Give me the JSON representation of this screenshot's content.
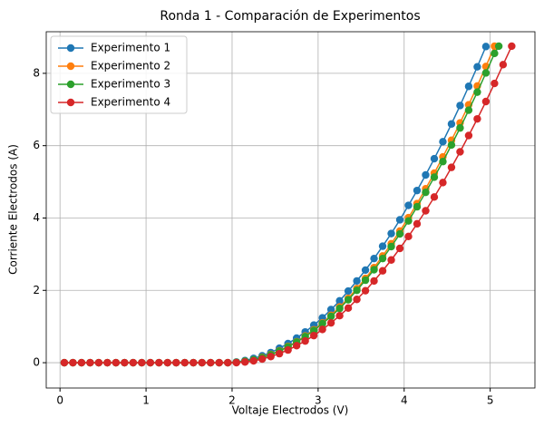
{
  "chart_data": {
    "type": "line",
    "title": "Ronda 1 - Comparación de Experimentos",
    "x_label": "Voltaje Electrodos (V)",
    "y_label": "Corriente Electrodos (A)",
    "xlim": [
      -0.16,
      5.52
    ],
    "ylim": [
      -0.7,
      9.15
    ],
    "xticks": [
      0,
      1,
      2,
      3,
      4,
      5
    ],
    "yticks": [
      0,
      2,
      4,
      6,
      8
    ],
    "grid": true,
    "legend": "upper left",
    "series": [
      {
        "name": "Experimento 1",
        "color": "#1f77b4",
        "x": [
          0.05,
          0.15,
          0.25,
          0.35,
          0.45,
          0.55,
          0.65,
          0.75,
          0.85,
          0.95,
          1.05,
          1.15,
          1.25,
          1.35,
          1.45,
          1.55,
          1.65,
          1.75,
          1.85,
          1.95,
          2.05,
          2.15,
          2.25,
          2.35,
          2.45,
          2.55,
          2.65,
          2.75,
          2.85,
          2.95,
          3.05,
          3.15,
          3.25,
          3.35,
          3.45,
          3.55,
          3.65,
          3.75,
          3.85,
          3.95,
          4.05,
          4.15,
          4.25,
          4.35,
          4.45,
          4.55,
          4.65,
          4.75,
          4.85,
          4.95
        ],
        "values": [
          0,
          0,
          0,
          0,
          0,
          0,
          0,
          0,
          0,
          0,
          0,
          0,
          0,
          0,
          0,
          0,
          0,
          0,
          0,
          0,
          0.02,
          0.06,
          0.12,
          0.19,
          0.28,
          0.4,
          0.53,
          0.68,
          0.85,
          1.04,
          1.24,
          1.47,
          1.71,
          1.98,
          2.26,
          2.56,
          2.88,
          3.22,
          3.57,
          3.95,
          4.35,
          4.76,
          5.19,
          5.64,
          6.11,
          6.6,
          7.11,
          7.64,
          8.18,
          8.74
        ]
      },
      {
        "name": "Experimento 2",
        "color": "#ff7f0e",
        "x": [
          0.05,
          0.15,
          0.25,
          0.35,
          0.45,
          0.55,
          0.65,
          0.75,
          0.85,
          0.95,
          1.05,
          1.15,
          1.25,
          1.35,
          1.45,
          1.55,
          1.65,
          1.75,
          1.85,
          1.95,
          2.05,
          2.15,
          2.25,
          2.35,
          2.45,
          2.55,
          2.65,
          2.75,
          2.85,
          2.95,
          3.05,
          3.15,
          3.25,
          3.35,
          3.45,
          3.55,
          3.65,
          3.75,
          3.85,
          3.95,
          4.05,
          4.15,
          4.25,
          4.35,
          4.45,
          4.55,
          4.65,
          4.75,
          4.85,
          4.95,
          5.05
        ],
        "values": [
          0,
          0,
          0,
          0,
          0,
          0,
          0,
          0,
          0,
          0,
          0,
          0,
          0,
          0,
          0,
          0,
          0,
          0,
          0,
          0,
          0.01,
          0.04,
          0.08,
          0.15,
          0.23,
          0.33,
          0.45,
          0.58,
          0.74,
          0.91,
          1.1,
          1.31,
          1.54,
          1.78,
          2.05,
          2.33,
          2.63,
          2.95,
          3.29,
          3.64,
          4.01,
          4.4,
          4.81,
          5.24,
          5.69,
          6.15,
          6.63,
          7.13,
          7.65,
          8.19,
          8.75
        ]
      },
      {
        "name": "Experimento 3",
        "color": "#2ca02c",
        "x": [
          0.05,
          0.15,
          0.25,
          0.35,
          0.45,
          0.55,
          0.65,
          0.75,
          0.85,
          0.95,
          1.05,
          1.15,
          1.25,
          1.35,
          1.45,
          1.55,
          1.65,
          1.75,
          1.85,
          1.95,
          2.05,
          2.15,
          2.25,
          2.35,
          2.45,
          2.55,
          2.65,
          2.75,
          2.85,
          2.95,
          3.05,
          3.15,
          3.25,
          3.35,
          3.45,
          3.55,
          3.65,
          3.75,
          3.85,
          3.95,
          4.05,
          4.15,
          4.25,
          4.35,
          4.45,
          4.55,
          4.65,
          4.75,
          4.85,
          4.95,
          5.05,
          5.1
        ],
        "values": [
          0,
          0,
          0,
          0,
          0,
          0,
          0,
          0,
          0,
          0,
          0,
          0,
          0,
          0,
          0,
          0,
          0,
          0,
          0,
          0,
          0.01,
          0.04,
          0.08,
          0.14,
          0.22,
          0.32,
          0.44,
          0.57,
          0.72,
          0.89,
          1.08,
          1.28,
          1.5,
          1.74,
          2.0,
          2.28,
          2.57,
          2.88,
          3.21,
          3.56,
          3.92,
          4.31,
          4.71,
          5.13,
          5.56,
          6.02,
          6.49,
          6.98,
          7.48,
          8.01,
          8.55,
          8.75
        ]
      },
      {
        "name": "Experimento 4",
        "color": "#d62728",
        "x": [
          0.05,
          0.15,
          0.25,
          0.35,
          0.45,
          0.55,
          0.65,
          0.75,
          0.85,
          0.95,
          1.05,
          1.15,
          1.25,
          1.35,
          1.45,
          1.55,
          1.65,
          1.75,
          1.85,
          1.95,
          2.05,
          2.15,
          2.25,
          2.35,
          2.45,
          2.55,
          2.65,
          2.75,
          2.85,
          2.95,
          3.05,
          3.15,
          3.25,
          3.35,
          3.45,
          3.55,
          3.65,
          3.75,
          3.85,
          3.95,
          4.05,
          4.15,
          4.25,
          4.35,
          4.45,
          4.55,
          4.65,
          4.75,
          4.85,
          4.95,
          5.05,
          5.15,
          5.25
        ],
        "values": [
          0,
          0,
          0,
          0,
          0,
          0,
          0,
          0,
          0,
          0,
          0,
          0,
          0,
          0,
          0,
          0,
          0,
          0,
          0,
          0,
          0.0,
          0.02,
          0.05,
          0.1,
          0.17,
          0.25,
          0.35,
          0.47,
          0.6,
          0.75,
          0.92,
          1.1,
          1.3,
          1.51,
          1.75,
          1.99,
          2.26,
          2.54,
          2.84,
          3.16,
          3.49,
          3.84,
          4.2,
          4.58,
          4.98,
          5.4,
          5.83,
          6.28,
          6.74,
          7.22,
          7.72,
          8.24,
          8.75
        ]
      }
    ]
  }
}
